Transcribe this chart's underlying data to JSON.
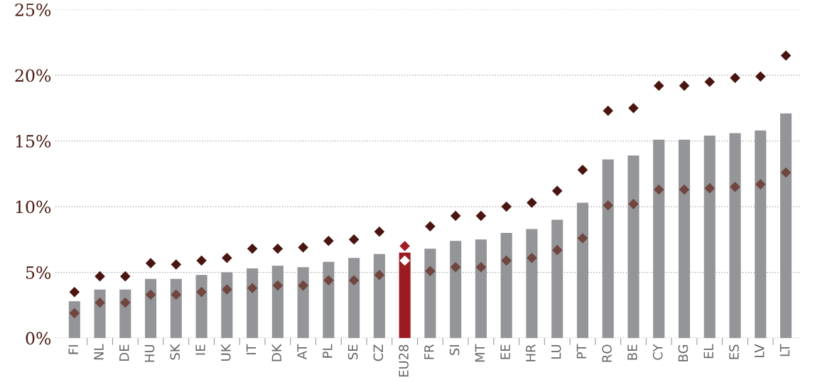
{
  "chart_data": {
    "type": "bar",
    "categories": [
      "FI",
      "NL",
      "DE",
      "HU",
      "SK",
      "IE",
      "UK",
      "IT",
      "DK",
      "AT",
      "PL",
      "SE",
      "CZ",
      "EU28",
      "FR",
      "SI",
      "MT",
      "EE",
      "HR",
      "LU",
      "PT",
      "RO",
      "BE",
      "CY",
      "BG",
      "EL",
      "ES",
      "LV",
      "LT"
    ],
    "series": [
      {
        "color": "#939598",
        "colors": [
          null,
          null,
          null,
          null,
          null,
          null,
          null,
          null,
          null,
          null,
          null,
          null,
          null,
          "#9b1b20",
          null,
          null,
          null,
          null,
          null,
          null,
          null,
          null,
          null,
          null,
          null,
          null,
          null,
          null,
          null
        ],
        "values": [
          2.8,
          3.7,
          3.7,
          4.5,
          4.5,
          4.8,
          5.0,
          5.3,
          5.5,
          5.4,
          5.8,
          6.1,
          6.4,
          6.5,
          6.8,
          7.4,
          7.5,
          8.0,
          8.3,
          9.0,
          10.3,
          13.6,
          13.9,
          15.1,
          15.1,
          15.4,
          15.6,
          15.8,
          17.1
        ]
      },
      {
        "type": "scatter",
        "color": "#4a1510",
        "colors": [
          null,
          null,
          null,
          null,
          null,
          null,
          null,
          null,
          null,
          null,
          null,
          null,
          null,
          "#a31c24",
          null,
          null,
          null,
          null,
          null,
          null,
          null,
          null,
          null,
          null,
          null,
          null,
          null,
          null,
          null
        ],
        "values": [
          3.5,
          4.7,
          4.7,
          5.7,
          5.6,
          5.9,
          6.1,
          6.8,
          6.8,
          6.9,
          7.4,
          7.5,
          8.1,
          7.0,
          8.5,
          9.3,
          9.3,
          10.0,
          10.3,
          11.2,
          12.8,
          17.3,
          17.5,
          19.2,
          19.2,
          19.5,
          19.8,
          19.9,
          21.5
        ]
      },
      {
        "type": "scatter",
        "color": "#70463f",
        "colors": [
          null,
          null,
          null,
          null,
          null,
          null,
          null,
          null,
          null,
          null,
          null,
          null,
          null,
          "#ffffff",
          null,
          null,
          null,
          null,
          null,
          null,
          null,
          null,
          null,
          null,
          null,
          null,
          null,
          null,
          null
        ],
        "values": [
          1.9,
          2.7,
          2.7,
          3.3,
          3.3,
          3.5,
          3.7,
          3.8,
          4.0,
          4.0,
          4.4,
          4.4,
          4.8,
          5.9,
          5.1,
          5.4,
          5.4,
          5.9,
          6.1,
          6.7,
          7.6,
          10.1,
          10.2,
          11.3,
          11.3,
          11.4,
          11.5,
          11.7,
          12.6
        ]
      }
    ],
    "ylim": [
      0,
      25
    ],
    "yticks": [
      {
        "value": 0,
        "label": "0%"
      },
      {
        "value": 5,
        "label": "5%"
      },
      {
        "value": 10,
        "label": "10%"
      },
      {
        "value": 15,
        "label": "15%"
      },
      {
        "value": 20,
        "label": "20%"
      },
      {
        "value": 25,
        "label": "25%"
      }
    ],
    "grid": "y",
    "marker": "diamond"
  }
}
